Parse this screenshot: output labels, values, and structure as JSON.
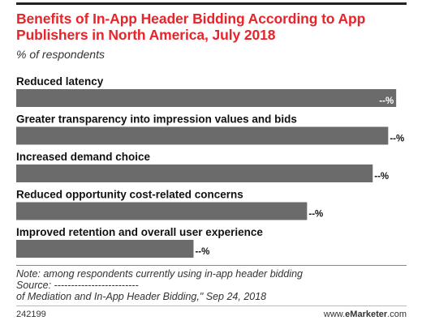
{
  "header": {
    "title": "Benefits of In-App Header Bidding According to App Publishers in North America, July 2018",
    "subtitle": "% of respondents"
  },
  "chart_data": {
    "type": "bar",
    "orientation": "horizontal",
    "categories": [
      "Reduced latency",
      "Greater transparency into impression values and bids",
      "Increased demand choice",
      "Reduced opportunity cost-related concerns",
      "Improved retention and overall user experience"
    ],
    "values": [
      81,
      79.3,
      76,
      62,
      37.8
    ],
    "value_labels": [
      "--%",
      "--%",
      "--%",
      "--%",
      "--%"
    ],
    "bar_color": "#6b6b6b",
    "xlim": [
      0,
      100
    ],
    "grid": false
  },
  "notes": {
    "note": "Note: among respondents currently using in-app header bidding",
    "source": "Source: -------------------------",
    "source_cont": "of Mediation and In-App Header Bidding,\" Sep 24, 2018"
  },
  "footer": {
    "chart_id": "242199",
    "brand_prefix": "www.",
    "brand_name": "eMarketer",
    "brand_suffix": ".com"
  }
}
